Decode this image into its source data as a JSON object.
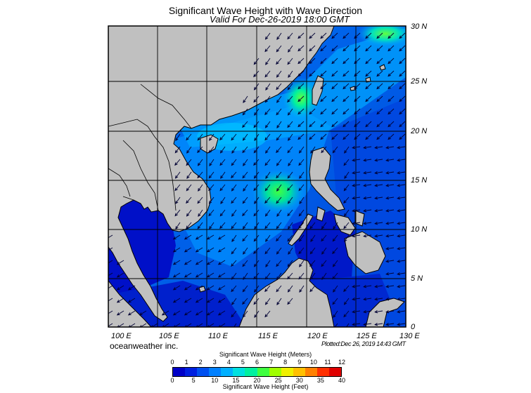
{
  "header": {
    "title": "Significant Wave Height with Wave Direction",
    "subtitle": "Valid For Dec-26-2019 18:00 GMT"
  },
  "map": {
    "region": "South China Sea",
    "lat_labels": [
      "30 N",
      "25 N",
      "20 N",
      "15 N",
      "10 N",
      "5 N",
      "0"
    ],
    "lon_labels": [
      "100 E",
      "105 E",
      "110 E",
      "115 E",
      "120 E",
      "125 E",
      "130 E"
    ],
    "wave_direction": "predominantly toward the southwest (NE monsoon swell)",
    "colors": {
      "land": "#c0c0c0",
      "coast": "#000000",
      "grid": "#000000",
      "arrow": "#000040"
    }
  },
  "footer": {
    "brand": "oceanweather inc.",
    "plotted": "Plotted:Dec 26, 2019 14:43 GMT"
  },
  "colorbar": {
    "title_top": "Significant Wave Height (Meters)",
    "title_bottom": "Significant Wave Height (Feet)",
    "meters_ticks": [
      "0",
      "1",
      "2",
      "3",
      "4",
      "5",
      "6",
      "7",
      "8",
      "9",
      "10",
      "11",
      "12"
    ],
    "feet_ticks": [
      "0",
      "5",
      "10",
      "15",
      "20",
      "25",
      "30",
      "35",
      "40"
    ],
    "colors": [
      "#0000c8",
      "#0020e0",
      "#0050f0",
      "#0080ff",
      "#00b0ff",
      "#00e0e0",
      "#00f0a0",
      "#40ff40",
      "#a0ff00",
      "#f0f000",
      "#ffc000",
      "#ff8000",
      "#ff3000",
      "#e00000"
    ]
  }
}
